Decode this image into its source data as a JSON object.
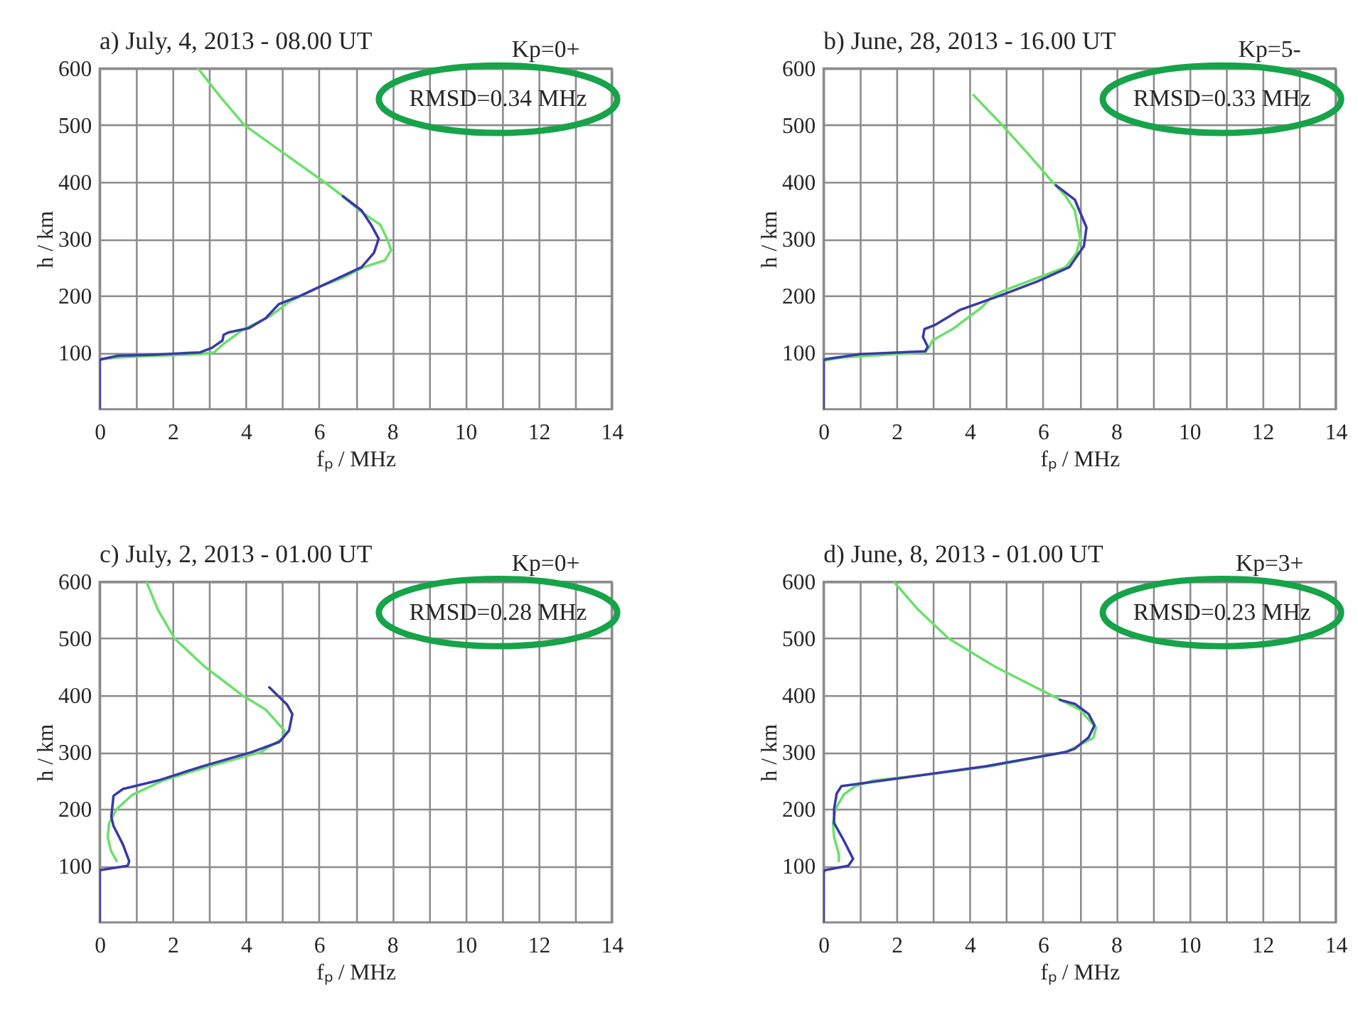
{
  "chart_data": [
    {
      "type": "line",
      "title": "a) July, 4, 2013 - 08.00 UT",
      "xlabel": "fₚ / MHz",
      "ylabel": "h / km",
      "annotations": [
        "Kp=0+",
        "RMSD=0.34 MHz"
      ],
      "xlim": [
        0,
        14
      ],
      "xticks": [
        0,
        {
          "value": 1,
          "label": null
        },
        2,
        {
          "value": 3,
          "label": null
        },
        4,
        {
          "value": 5,
          "label": null
        },
        6,
        {
          "value": 7,
          "label": null
        },
        8,
        {
          "value": 9,
          "label": null
        },
        10,
        {
          "value": 11,
          "label": null
        },
        12,
        {
          "value": 13,
          "label": null
        },
        14
      ],
      "ylim": [
        0,
        600
      ],
      "yticks": [
        100,
        200,
        300,
        400,
        500,
        600
      ],
      "grid": true,
      "series": [
        {
          "color": "#6be06b",
          "x": [
            2.69,
            3.3,
            3.96,
            5.05,
            6.14,
            6.65,
            7.1,
            7.67,
            7.86,
            7.97,
            7.8,
            7.22,
            6.6,
            6.07,
            5.18,
            4.67,
            3.9,
            3.39,
            3.13,
            2.75,
            1.5,
            0.5,
            0.06
          ],
          "values": [
            600,
            550,
            500,
            450,
            400,
            375,
            350,
            325,
            300,
            280,
            262,
            250,
            230,
            217,
            189,
            164,
            139,
            115,
            100,
            97,
            94,
            91,
            88
          ]
        },
        {
          "color": "#3a3aa8",
          "x": [
            6.65,
            7.16,
            7.42,
            7.63,
            7.5,
            7.16,
            6.33,
            5.5,
            4.9,
            4.54,
            4.09,
            3.52,
            3.39,
            3.36,
            3.07,
            2.75,
            1.5,
            0.5,
            0.06,
            0,
            0
          ],
          "values": [
            375,
            350,
            325,
            300,
            275,
            250,
            225,
            200,
            185,
            160,
            143,
            135,
            131,
            121,
            108,
            100,
            96,
            94,
            88,
            86,
            0
          ]
        }
      ]
    },
    {
      "type": "line",
      "title": "b) June, 28, 2013 - 16.00 UT",
      "xlabel": "fₚ / MHz",
      "ylabel": "h / km",
      "annotations": [
        "Kp=5-",
        "RMSD=0.33 MHz"
      ],
      "xlim": [
        0,
        14
      ],
      "xticks": [
        0,
        {
          "value": 1,
          "label": null
        },
        2,
        {
          "value": 3,
          "label": null
        },
        4,
        {
          "value": 5,
          "label": null
        },
        6,
        {
          "value": 7,
          "label": null
        },
        8,
        {
          "value": 9,
          "label": null
        },
        10,
        {
          "value": 11,
          "label": null
        },
        12,
        {
          "value": 13,
          "label": null
        },
        14
      ],
      "ylim": [
        0,
        600
      ],
      "yticks": [
        100,
        200,
        300,
        400,
        500,
        600
      ],
      "grid": true,
      "series": [
        {
          "color": "#6be06b",
          "x": [
            4.1,
            4.89,
            5.59,
            6.26,
            6.62,
            6.87,
            7.02,
            6.92,
            6.62,
            5.72,
            5.02,
            4.64,
            4.32,
            3.55,
            2.98,
            2.89,
            2.78,
            1.5,
            0.5,
            0.04
          ],
          "values": [
            553,
            500,
            450,
            400,
            375,
            350,
            300,
            275,
            250,
            228,
            211,
            200,
            179,
            142,
            121,
            109,
            100,
            95,
            91,
            86
          ]
        },
        {
          "color": "#3a3aa8",
          "x": [
            6.36,
            6.87,
            7.19,
            7.12,
            6.72,
            5.85,
            4.83,
            3.74,
            3.04,
            2.76,
            2.72,
            2.85,
            2.78,
            1.0,
            0.06,
            0,
            0
          ],
          "values": [
            394,
            369,
            320,
            287,
            250,
            225,
            200,
            175,
            148,
            141,
            127,
            110,
            102,
            97,
            88,
            86,
            0
          ]
        }
      ]
    },
    {
      "type": "line",
      "title": "c) July, 2, 2013 - 01.00 UT",
      "xlabel": "fₚ / MHz",
      "ylabel": "h / km",
      "annotations": [
        "Kp=0+",
        "RMSD=0.28 MHz"
      ],
      "xlim": [
        0,
        14
      ],
      "xticks": [
        0,
        {
          "value": 1,
          "label": null
        },
        2,
        {
          "value": 3,
          "label": null
        },
        4,
        {
          "value": 5,
          "label": null
        },
        6,
        {
          "value": 7,
          "label": null
        },
        8,
        {
          "value": 9,
          "label": null
        },
        10,
        {
          "value": 11,
          "label": null
        },
        12,
        {
          "value": 13,
          "label": null
        },
        14
      ],
      "ylim": [
        0,
        600
      ],
      "yticks": [
        100,
        200,
        300,
        400,
        500,
        600
      ],
      "grid": true,
      "series": [
        {
          "color": "#6be06b",
          "x": [
            1.28,
            1.6,
            2.05,
            2.88,
            3.9,
            4.54,
            5.05,
            5.03,
            4.41,
            3.0,
            1.73,
            0.9,
            0.47,
            0.26,
            0.22,
            0.32,
            0.47
          ],
          "values": [
            600,
            550,
            500,
            450,
            400,
            375,
            338,
            325,
            300,
            275,
            250,
            225,
            200,
            175,
            150,
            125,
            108
          ]
        },
        {
          "color": "#3a3aa8",
          "x": [
            4.64,
            5.12,
            5.27,
            5.18,
            4.92,
            4.16,
            2.81,
            1.6,
            0.64,
            0.38,
            0.32,
            0.38,
            0.64,
            0.81,
            0.77,
            0.19,
            0,
            0
          ],
          "values": [
            414,
            384,
            367,
            338,
            318,
            300,
            275,
            250,
            235,
            223,
            186,
            170,
            137,
            108,
            100,
            94,
            92,
            0
          ]
        }
      ]
    },
    {
      "type": "line",
      "title": "d) June, 8, 2013 - 01.00 UT",
      "xlabel": "fₚ / MHz",
      "ylabel": "h / km",
      "annotations": [
        "Kp=3+",
        "RMSD=0.23 MHz"
      ],
      "xlim": [
        0,
        14
      ],
      "xticks": [
        0,
        {
          "value": 1,
          "label": null
        },
        2,
        {
          "value": 3,
          "label": null
        },
        4,
        {
          "value": 5,
          "label": null
        },
        6,
        {
          "value": 7,
          "label": null
        },
        8,
        {
          "value": 9,
          "label": null
        },
        10,
        {
          "value": 11,
          "label": null
        },
        12,
        {
          "value": 13,
          "label": null
        },
        14
      ],
      "ylim": [
        0,
        600
      ],
      "yticks": [
        100,
        200,
        300,
        400,
        500,
        600
      ],
      "grid": true,
      "series": [
        {
          "color": "#6be06b",
          "x": [
            1.92,
            2.6,
            3.42,
            4.7,
            6.23,
            7.0,
            7.45,
            7.38,
            6.62,
            4.57,
            3.04,
            1.38,
            0.87,
            0.55,
            0.33,
            0.26,
            0.29,
            0.42,
            0.42
          ],
          "values": [
            600,
            550,
            500,
            450,
            400,
            375,
            343,
            325,
            300,
            275,
            262,
            250,
            240,
            225,
            200,
            175,
            150,
            120,
            108
          ]
        },
        {
          "color": "#3a3aa8",
          "x": [
            6.46,
            6.87,
            7.25,
            7.41,
            7.25,
            6.87,
            6.62,
            4.44,
            1.63,
            0.49,
            0.36,
            0.29,
            0.29,
            0.55,
            0.81,
            0.68,
            0.04,
            0,
            0
          ],
          "values": [
            392,
            385,
            367,
            347,
            326,
            306,
            300,
            275,
            250,
            240,
            227,
            200,
            175,
            145,
            112,
            100,
            92,
            88,
            0
          ]
        }
      ]
    }
  ]
}
